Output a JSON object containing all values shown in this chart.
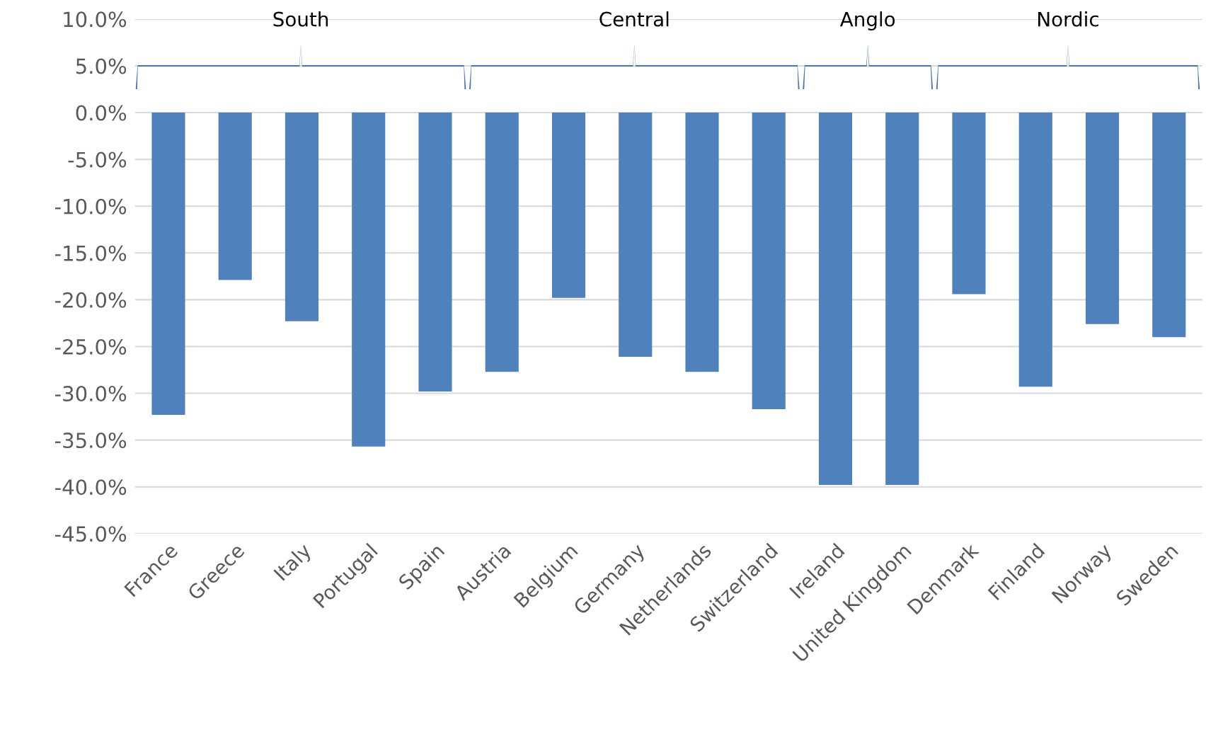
{
  "chart_data": {
    "type": "bar",
    "categories": [
      "France",
      "Greece",
      "Italy",
      "Portugal",
      "Spain",
      "Austria",
      "Belgium",
      "Germany",
      "Netherlands",
      "Switzerland",
      "Ireland",
      "United Kingdom",
      "Denmark",
      "Finland",
      "Norway",
      "Sweden"
    ],
    "values": [
      -32.3,
      -17.9,
      -22.3,
      -35.7,
      -29.8,
      -27.7,
      -19.8,
      -26.1,
      -27.7,
      -31.7,
      -39.8,
      -39.8,
      -19.4,
      -29.3,
      -22.6,
      -24.0
    ],
    "color": "#4f81bd",
    "ylim": [
      -45,
      10
    ],
    "yticks": [
      {
        "value": 10,
        "label": "10.0%"
      },
      {
        "value": 5,
        "label": "5.0%"
      },
      {
        "value": 0,
        "label": "0.0%"
      },
      {
        "value": -5,
        "label": "-5.0%"
      },
      {
        "value": -10,
        "label": "-10.0%"
      },
      {
        "value": -15,
        "label": "-15.0%"
      },
      {
        "value": -20,
        "label": "-20.0%"
      },
      {
        "value": -25,
        "label": "-25.0%"
      },
      {
        "value": -30,
        "label": "-30.0%"
      },
      {
        "value": -35,
        "label": "-35.0%"
      },
      {
        "value": -40,
        "label": "-40.0%"
      },
      {
        "value": -45,
        "label": "-45.0%"
      }
    ],
    "grid": "y",
    "annotations": [
      "South",
      "Central",
      "Anglo",
      "Nordic"
    ]
  }
}
